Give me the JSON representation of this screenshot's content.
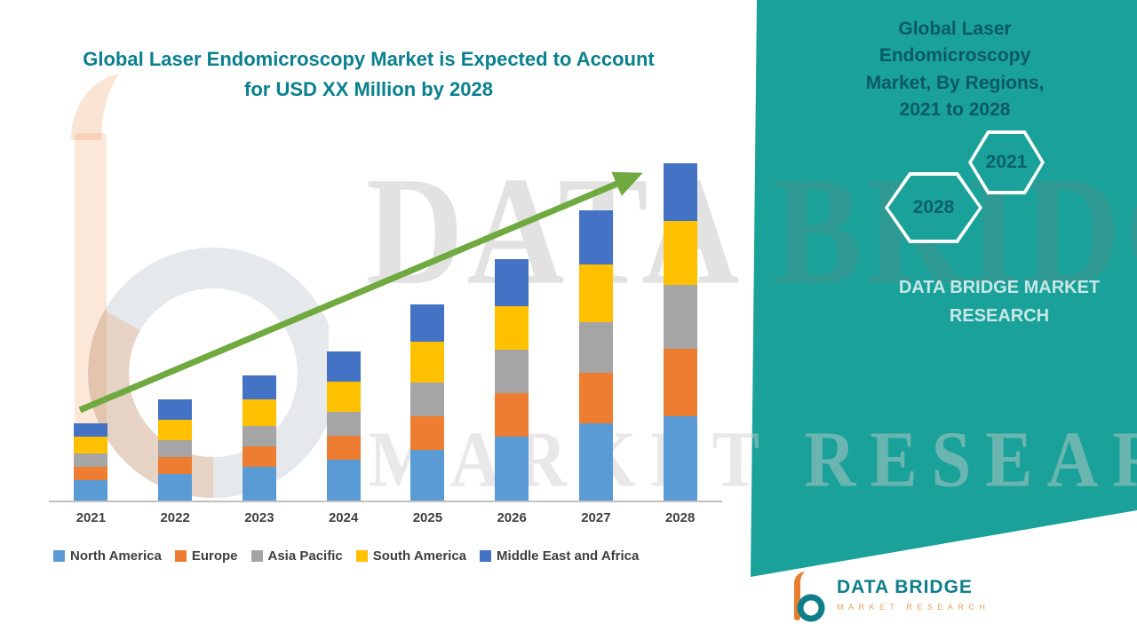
{
  "colors": {
    "teal_panel": "#1AA29A",
    "title_teal": "#0A808F",
    "arrow_green": "#6FA93F",
    "logo_teal": "#0E7F8A",
    "logo_orange": "#E87D2E"
  },
  "header": {
    "title_line1": "Global Laser Endomicroscopy Market is Expected to Account",
    "title_line2": "for USD XX Million by 2028"
  },
  "side_panel": {
    "title_line1": "Global Laser Endomicroscopy",
    "title_line2": "Market, By Regions,",
    "title_line3": "2021 to 2028",
    "hexagon_back_year": "2028",
    "hexagon_front_year": "2021",
    "brand_line1": "DATA BRIDGE MARKET",
    "brand_line2": "RESEARCH"
  },
  "watermarks": {
    "top": "DATA BRIDGE",
    "bottom": "MARKET RESEARCH"
  },
  "footer_logo": {
    "name": "DATA BRIDGE",
    "tagline": "MARKET RESEARCH"
  },
  "chart_data": {
    "type": "bar",
    "stacked": true,
    "title": "Global Laser Endomicroscopy Market is Expected to Account for USD XX Million by 2028",
    "xlabel": "",
    "ylabel": "",
    "value_labels_shown": false,
    "gridlines": false,
    "legend_position": "bottom",
    "trend_arrow": true,
    "ylim": [
      0,
      105
    ],
    "categories": [
      "2021",
      "2022",
      "2023",
      "2024",
      "2025",
      "2026",
      "2027",
      "2028"
    ],
    "series": [
      {
        "name": "North America",
        "color": "#5B9BD5",
        "values": [
          6,
          8,
          10,
          12,
          15,
          19,
          23,
          25
        ]
      },
      {
        "name": "Europe",
        "color": "#ED7D31",
        "values": [
          4,
          5,
          6,
          7,
          10,
          13,
          15,
          20
        ]
      },
      {
        "name": "Asia Pacific",
        "color": "#A5A5A5",
        "values": [
          4,
          5,
          6,
          7,
          10,
          13,
          15,
          19
        ]
      },
      {
        "name": "South America",
        "color": "#FFC000",
        "values": [
          5,
          6,
          8,
          9,
          12,
          13,
          17,
          19
        ]
      },
      {
        "name": "Middle East and Africa",
        "color": "#4472C4",
        "values": [
          4,
          6,
          7,
          9,
          11,
          14,
          16,
          17
        ]
      }
    ]
  }
}
